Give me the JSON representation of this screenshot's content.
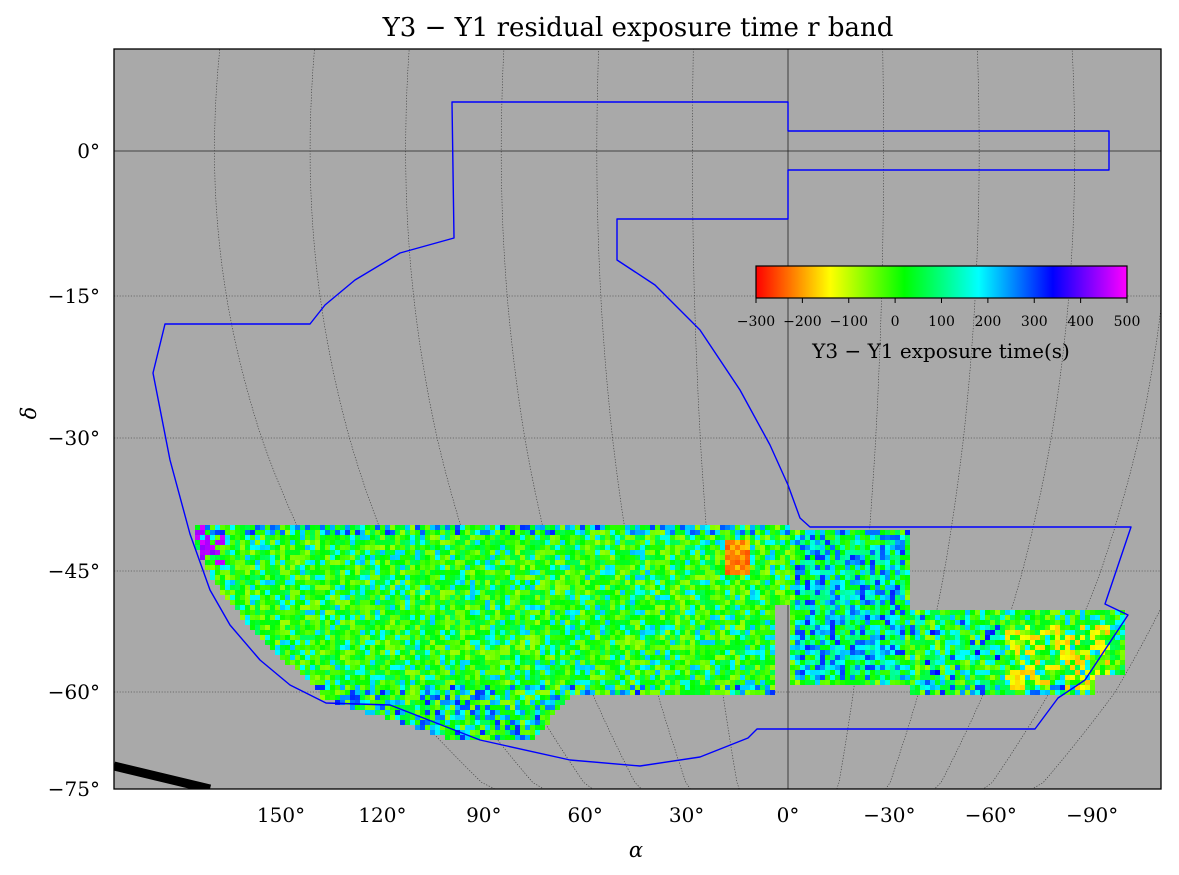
{
  "chart_data": {
    "type": "heatmap",
    "title": "Y3 − Y1 residual exposure time r band",
    "xlabel": "α",
    "ylabel": "δ",
    "projection": "McBryde-Thomas flat-polar quartic",
    "x_ticks": [
      "150°",
      "120°",
      "90°",
      "60°",
      "30°",
      "0°",
      "−30°",
      "−60°",
      "−90°"
    ],
    "x_tick_values": [
      150,
      120,
      90,
      60,
      30,
      0,
      -30,
      -60,
      -90
    ],
    "y_ticks": [
      "0°",
      "−15°",
      "−30°",
      "−45°",
      "−60°",
      "−75°"
    ],
    "y_tick_values": [
      0,
      -15,
      -30,
      -45,
      -60,
      -75
    ],
    "xlim": [
      180,
      -100
    ],
    "ylim": [
      -75,
      10
    ],
    "grid": true,
    "background_color": "#a9a9a9",
    "footprint_color": "#0000ff",
    "colorbar": {
      "label": "Y3 − Y1 exposure time(s)",
      "ticks": [
        "−300",
        "−200",
        "−100",
        "0",
        "100",
        "200",
        "300",
        "400",
        "500"
      ],
      "tick_values": [
        -300,
        -200,
        -100,
        0,
        100,
        200,
        300,
        400,
        500
      ],
      "range": [
        -300,
        500
      ],
      "colormap": [
        "#ff0000",
        "#ffff00",
        "#00ff00",
        "#00ffff",
        "#0000ff",
        "#ff00ff"
      ],
      "placement": "upper-right inset"
    },
    "data_summary": {
      "coverage_dec_range": [
        -64,
        -40
      ],
      "dominant_value": 0,
      "regions": [
        {
          "ra": 16,
          "dec": -45,
          "value": -250
        },
        {
          "ra": -5,
          "dec": -52,
          "value": 250
        },
        {
          "ra": -70,
          "dec": -55,
          "value": -120
        }
      ]
    }
  }
}
